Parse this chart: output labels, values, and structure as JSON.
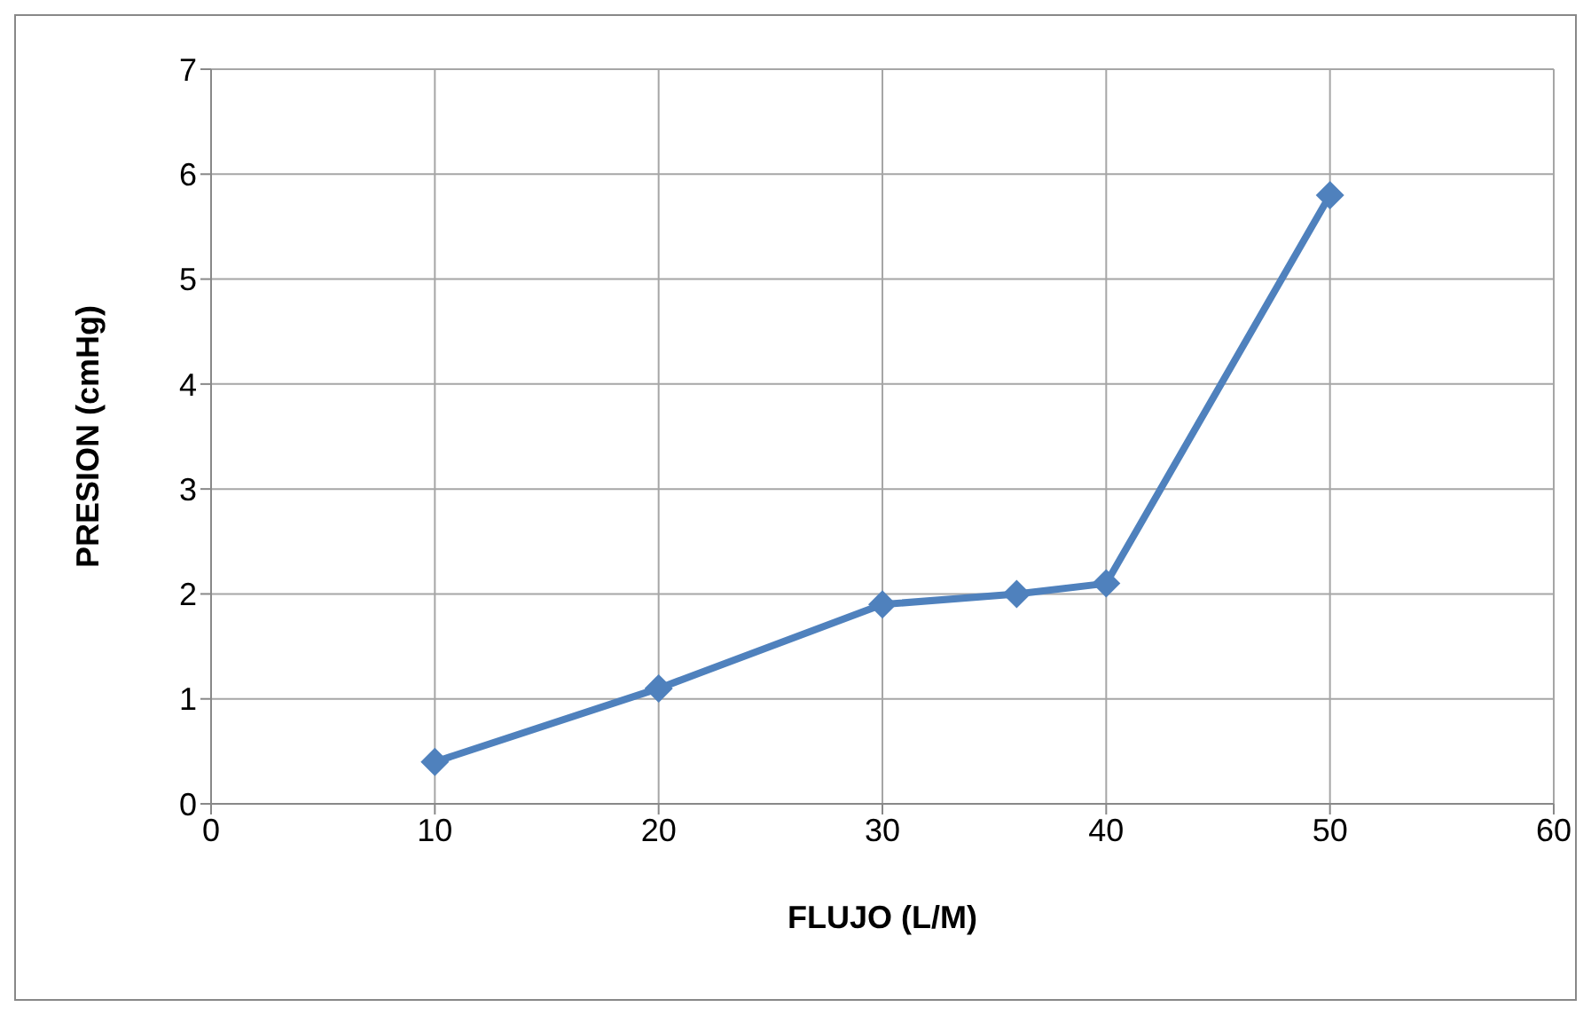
{
  "chart_data": {
    "type": "line",
    "xlabel": "FLUJO (L/M)",
    "ylabel": "PRESION (cmHg)",
    "x": [
      10,
      20,
      30,
      36,
      40,
      50
    ],
    "series": [
      {
        "color": "#4f81bd",
        "values": [
          0.4,
          1.1,
          1.9,
          2.0,
          2.1,
          5.8
        ]
      }
    ],
    "xlim": [
      0,
      60
    ],
    "xticks": [
      0,
      10,
      20,
      30,
      40,
      50,
      60
    ],
    "ylim": [
      0,
      7
    ],
    "yticks": [
      0,
      1,
      2,
      3,
      4,
      5,
      6,
      7
    ],
    "grid": true,
    "marker": "diamond",
    "line_style": "solid"
  }
}
